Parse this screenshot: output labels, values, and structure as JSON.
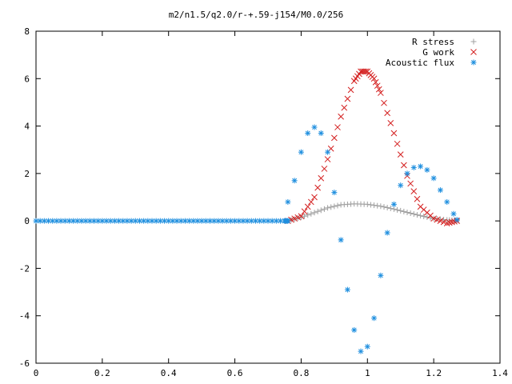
{
  "chart_data": {
    "type": "scatter",
    "title": "m2/n1.5/q2.0/r-+.59-j154/M0.0/256",
    "xlabel": "",
    "ylabel": "",
    "xlim": [
      0,
      1.4
    ],
    "ylim": [
      -6,
      8
    ],
    "x_ticks": [
      "0",
      "0.2",
      "0.4",
      "0.6",
      "0.8",
      "1",
      "1.2",
      "1.4"
    ],
    "y_ticks": [
      "8",
      "6",
      "4",
      "2",
      "0",
      "-2",
      "-4",
      "-6"
    ],
    "grid": false,
    "legend": "top-right",
    "series": [
      {
        "name": "R stress",
        "marker": "+",
        "color": "#a0a0a0",
        "x": [
          0.76,
          0.8,
          0.84,
          0.88,
          0.92,
          0.96,
          1.0,
          1.04,
          1.08,
          1.12,
          1.16,
          1.2,
          1.24,
          1.27
        ],
        "y": [
          0.0,
          0.15,
          0.35,
          0.55,
          0.68,
          0.72,
          0.7,
          0.62,
          0.5,
          0.36,
          0.22,
          0.1,
          0.04,
          0.02
        ]
      },
      {
        "name": "G work",
        "marker": "x",
        "color": "#d42020",
        "x": [
          0.76,
          0.8,
          0.84,
          0.88,
          0.92,
          0.96,
          0.98,
          1.0,
          1.02,
          1.04,
          1.08,
          1.12,
          1.16,
          1.2,
          1.24,
          1.27
        ],
        "y": [
          0.0,
          0.2,
          1.0,
          2.6,
          4.4,
          5.9,
          6.3,
          6.3,
          6.0,
          5.4,
          3.7,
          1.9,
          0.6,
          0.1,
          -0.1,
          0.0
        ]
      },
      {
        "name": "Acoustic flux",
        "marker": "*",
        "color": "#1f8fdf",
        "x": [
          0.0,
          0.05,
          0.1,
          0.15,
          0.2,
          0.25,
          0.3,
          0.35,
          0.4,
          0.45,
          0.5,
          0.55,
          0.6,
          0.65,
          0.7,
          0.75,
          0.76
        ],
        "y": [
          0,
          0,
          0,
          0,
          0,
          0,
          0,
          0,
          0,
          0,
          0,
          0,
          0,
          0,
          0,
          0,
          0
        ],
        "x2": [
          0.76,
          0.78,
          0.8,
          0.82,
          0.84,
          0.86,
          0.88,
          0.9,
          0.92,
          0.94,
          0.96,
          0.98,
          1.0,
          1.02,
          1.04,
          1.06,
          1.08,
          1.1,
          1.12,
          1.14,
          1.16,
          1.18,
          1.2,
          1.22,
          1.24,
          1.26,
          1.27
        ],
        "y2": [
          0.8,
          1.7,
          2.9,
          3.7,
          3.95,
          3.7,
          2.9,
          1.2,
          -0.8,
          -2.9,
          -4.6,
          -5.5,
          -5.3,
          -4.1,
          -2.3,
          -0.5,
          0.7,
          1.5,
          2.0,
          2.25,
          2.3,
          2.15,
          1.8,
          1.3,
          0.8,
          0.3,
          0.05
        ]
      }
    ]
  }
}
